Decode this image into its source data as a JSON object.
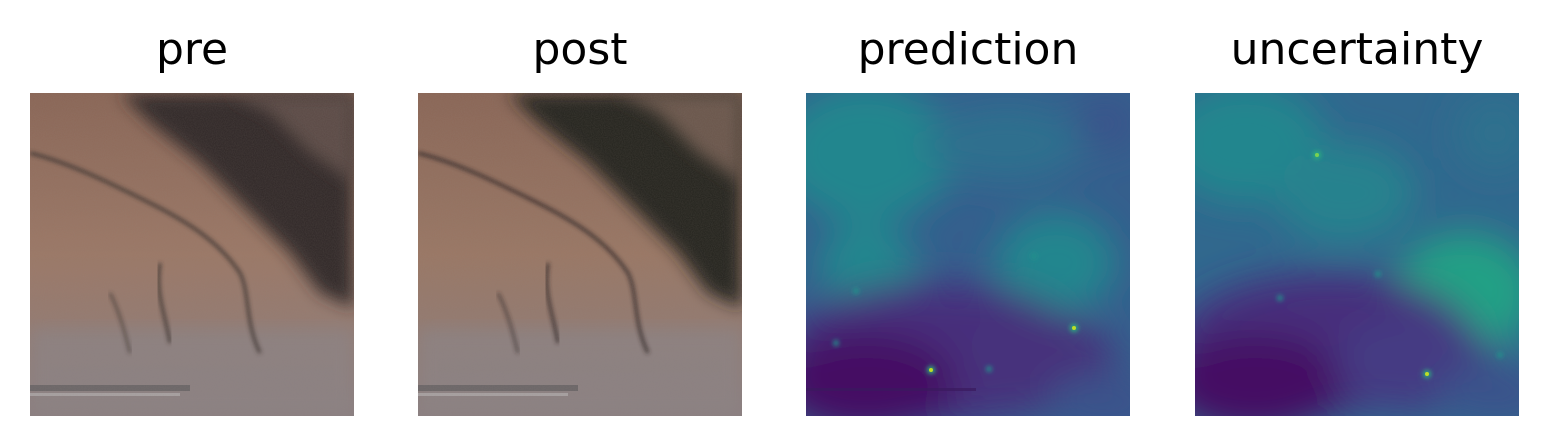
{
  "panels": [
    {
      "id": "pre",
      "title": "pre",
      "kind": "satellite-rgb"
    },
    {
      "id": "post",
      "title": "post",
      "kind": "satellite-rgb"
    },
    {
      "id": "prediction",
      "title": "prediction",
      "kind": "viridis-heatmap"
    },
    {
      "id": "uncertainty",
      "title": "uncertainty",
      "kind": "viridis-heatmap"
    }
  ],
  "colors": {
    "background": "#ffffff",
    "title_text": "#000000",
    "terrain_light": "#9c7866",
    "terrain_mid": "#7f5f51",
    "terrain_dark": "#3a302d",
    "terrain_shadow": "#24201f",
    "urban": "#8f8789",
    "viridis_dark": "#440d64",
    "viridis_purple": "#472e7c",
    "viridis_blue": "#355f8d",
    "viridis_teal": "#24868e",
    "viridis_green": "#2ab07f",
    "viridis_yellow": "#bddf26"
  }
}
